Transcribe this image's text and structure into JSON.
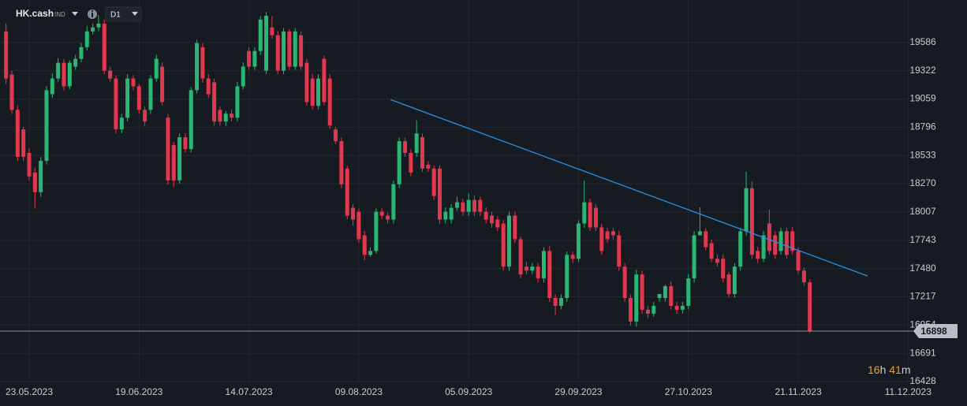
{
  "header": {
    "symbol": "HK.cash",
    "symbol_type": "IND",
    "timeframe": "D1"
  },
  "countdown": [
    "16",
    "h",
    "41",
    "m"
  ],
  "chart_data": {
    "type": "candlestick",
    "up_color": "#2bb673",
    "down_color": "#e0394f",
    "categories": [
      null,
      null,
      null,
      null,
      "23.05.2023",
      null,
      null,
      null,
      null,
      null,
      null,
      null,
      null,
      null,
      null,
      null,
      null,
      null,
      null,
      null,
      null,
      null,
      null,
      "19.06.2023",
      null,
      null,
      null,
      null,
      null,
      null,
      null,
      null,
      null,
      null,
      null,
      null,
      null,
      null,
      null,
      null,
      null,
      null,
      "14.07.2023",
      null,
      null,
      null,
      null,
      null,
      null,
      null,
      null,
      null,
      null,
      null,
      null,
      null,
      null,
      null,
      null,
      null,
      null,
      "09.08.2023",
      null,
      null,
      null,
      null,
      null,
      null,
      null,
      null,
      null,
      null,
      null,
      null,
      null,
      null,
      null,
      null,
      null,
      null,
      "05.09.2023",
      null,
      null,
      null,
      null,
      null,
      null,
      null,
      null,
      null,
      null,
      null,
      null,
      null,
      null,
      null,
      null,
      null,
      null,
      "29.09.2023",
      null,
      null,
      null,
      null,
      null,
      null,
      null,
      null,
      null,
      null,
      null,
      null,
      null,
      null,
      null,
      null,
      null,
      null,
      "27.10.2023",
      null,
      null,
      null,
      null,
      null,
      null,
      null,
      null,
      null,
      null,
      null,
      null,
      null,
      null,
      null,
      null,
      null,
      null,
      "21.11.2023",
      null,
      null,
      null,
      null,
      null,
      null,
      null,
      null,
      null,
      null,
      null,
      null,
      null,
      null,
      null,
      null,
      null,
      null,
      "11.12.2023"
    ],
    "open": [
      19688,
      19287,
      18958,
      18776,
      18557,
      18374,
      18192,
      18484,
      19104,
      19250,
      19396,
      19177,
      19360,
      19433,
      19542,
      19688,
      19725,
      19761,
      19323,
      19250,
      18776,
      18885,
      19250,
      19177,
      18958,
      18958,
      19250,
      19360,
      18885,
      18630,
      18301,
      18703,
      18593,
      19141,
      19542,
      19250,
      19214,
      18958,
      18849,
      18922,
      18885,
      19177,
      19506,
      19360,
      19506,
      19323,
      19725,
      19652,
      19323,
      19688,
      19360,
      19652,
      19396,
      19250,
      18995,
      19433,
      19250,
      18776,
      18666,
      18411,
      18046,
      18009,
      17790,
      17608,
      17644,
      18009,
      17973,
      17936,
      18265,
      18666,
      18557,
      18557,
      18703,
      18447,
      18411,
      18411,
      17936,
      17936,
      18046,
      18097,
      18009,
      18119,
      18119,
      18009,
      17973,
      17936,
      17900,
      17498,
      17973,
      17754,
      17498,
      17462,
      17498,
      17389,
      17644,
      17206,
      17133,
      17206,
      17608,
      17571,
      17900,
      18097,
      18046,
      17863,
      17827,
      17827,
      17790,
      17498,
      17206,
      16987,
      17425,
      17097,
      17060,
      17206,
      17206,
      17316,
      17133,
      17097,
      17133,
      17389,
      17790,
      17827,
      17717,
      17571,
      17571,
      17425,
      17243,
      17498,
      17827,
      18228,
      17644,
      17571,
      17900,
      17790,
      17644,
      17827,
      17827,
      17644,
      17462,
      17352,
      null,
      null,
      null,
      null,
      null,
      null,
      null,
      null,
      null,
      null,
      null,
      null,
      null,
      null,
      null,
      null,
      null
    ],
    "high": [
      19760,
      19320,
      19000,
      18800,
      18600,
      18420,
      18520,
      19180,
      19300,
      19440,
      19430,
      19420,
      19470,
      19580,
      19740,
      19760,
      19840,
      19800,
      19360,
      19280,
      18920,
      19290,
      19280,
      19200,
      18990,
      19280,
      19470,
      19400,
      18920,
      18660,
      18740,
      18740,
      19170,
      19610,
      19580,
      19290,
      19250,
      18990,
      18950,
      18960,
      19220,
      19400,
      19540,
      19540,
      19830,
      19870,
      19830,
      19690,
      19720,
      19710,
      19720,
      19690,
      19430,
      19290,
      19290,
      19460,
      19290,
      18800,
      18700,
      18440,
      18080,
      18040,
      17830,
      17680,
      18040,
      18040,
      18000,
      18300,
      18700,
      18700,
      18590,
      18860,
      18740,
      18480,
      18440,
      18440,
      18050,
      18080,
      18150,
      18130,
      18180,
      18160,
      18150,
      18050,
      18010,
      17970,
      17930,
      18010,
      18010,
      17780,
      17540,
      17530,
      17530,
      17680,
      17690,
      17240,
      17240,
      17640,
      17640,
      17930,
      18300,
      18130,
      18080,
      17900,
      17860,
      17860,
      17830,
      17530,
      17240,
      17470,
      17460,
      17130,
      17170,
      17240,
      17330,
      17360,
      17170,
      17170,
      17430,
      17830,
      18050,
      17860,
      17750,
      17610,
      17610,
      17450,
      17530,
      17860,
      18380,
      18290,
      17680,
      17830,
      18030,
      17830,
      17860,
      17860,
      17870,
      17680,
      17490,
      17380,
      null,
      null,
      null,
      null,
      null,
      null,
      null,
      null,
      null,
      null,
      null,
      null,
      null,
      null,
      null,
      null,
      null
    ],
    "low": [
      19200,
      18920,
      18480,
      18480,
      18300,
      18040,
      18150,
      18450,
      19070,
      19220,
      19140,
      19150,
      19330,
      19400,
      19510,
      19660,
      19690,
      19290,
      19220,
      18740,
      18740,
      18850,
      19140,
      18920,
      18810,
      18920,
      19220,
      19000,
      18260,
      18240,
      18270,
      18560,
      18560,
      19110,
      19210,
      19070,
      18810,
      18810,
      18810,
      18850,
      18850,
      19150,
      19330,
      19330,
      19470,
      19290,
      19620,
      19290,
      19290,
      19330,
      19330,
      19330,
      19000,
      18960,
      18960,
      19000,
      18780,
      18640,
      18230,
      17940,
      17880,
      17720,
      17560,
      17590,
      17620,
      17940,
      17900,
      17900,
      18230,
      18520,
      18340,
      18520,
      18380,
      18380,
      18120,
      17900,
      17900,
      17900,
      18020,
      17970,
      17970,
      17970,
      17970,
      17900,
      17860,
      17830,
      17460,
      17460,
      17720,
      17390,
      17430,
      17430,
      17350,
      17350,
      17170,
      17050,
      17100,
      17170,
      17530,
      17540,
      17860,
      17830,
      17830,
      17610,
      17720,
      17750,
      17460,
      17170,
      16950,
      16940,
      17060,
      17020,
      17030,
      17170,
      17170,
      17100,
      17060,
      17060,
      17100,
      17350,
      17790,
      17650,
      17540,
      17500,
      17350,
      17210,
      17210,
      17460,
      17790,
      17570,
      17530,
      17540,
      17610,
      17570,
      17610,
      17570,
      17610,
      17430,
      17320,
      16880,
      null,
      null,
      null,
      null,
      null,
      null,
      null,
      null,
      null,
      null,
      null,
      null,
      null,
      null,
      null,
      null,
      null
    ],
    "close": [
      19250,
      18958,
      18520,
      18520,
      18338,
      18192,
      18484,
      19141,
      19250,
      19396,
      19177,
      19396,
      19433,
      19542,
      19688,
      19725,
      19761,
      19323,
      19250,
      18776,
      18885,
      19250,
      19177,
      18958,
      18849,
      19250,
      19433,
      19031,
      18301,
      18301,
      18703,
      18593,
      19141,
      19579,
      19250,
      19104,
      18849,
      18849,
      18922,
      18885,
      19177,
      19360,
      19360,
      19506,
      19798,
      19834,
      19652,
      19323,
      19688,
      19360,
      19688,
      19360,
      19031,
      18995,
      19250,
      19031,
      18812,
      18666,
      18265,
      17973,
      17936,
      17754,
      17608,
      17644,
      18009,
      17973,
      17936,
      18265,
      18666,
      18557,
      18374,
      18739,
      18411,
      18411,
      18155,
      17936,
      18009,
      18046,
      18097,
      18009,
      18119,
      18009,
      18009,
      17936,
      17900,
      17863,
      17498,
      17973,
      17754,
      17425,
      17462,
      17498,
      17389,
      17644,
      17206,
      17133,
      17206,
      17608,
      17571,
      17900,
      18097,
      17863,
      17863,
      17644,
      17754,
      17790,
      17498,
      17206,
      16987,
      17425,
      17097,
      17060,
      17133,
      17243,
      17316,
      17133,
      17097,
      17133,
      17389,
      17790,
      17827,
      17681,
      17571,
      17535,
      17389,
      17243,
      17498,
      17827,
      18228,
      17608,
      17571,
      17790,
      17644,
      17608,
      17827,
      17608,
      17644,
      17462,
      17352,
      16898,
      null,
      null,
      null,
      null,
      null,
      null,
      null,
      null,
      null,
      null,
      null,
      null,
      null,
      null,
      null,
      null,
      null
    ],
    "ylim": [
      16428,
      19922
    ],
    "yticks": [
      19586,
      19322,
      19059,
      18796,
      18533,
      18270,
      18007,
      17743,
      17480,
      17217,
      16954,
      16691,
      16428
    ],
    "grid": true,
    "last_price": 16898,
    "trendline": {
      "x": [
        66.5,
        149
      ],
      "y": [
        19053,
        17411
      ],
      "color": "#2a8fe0"
    }
  }
}
